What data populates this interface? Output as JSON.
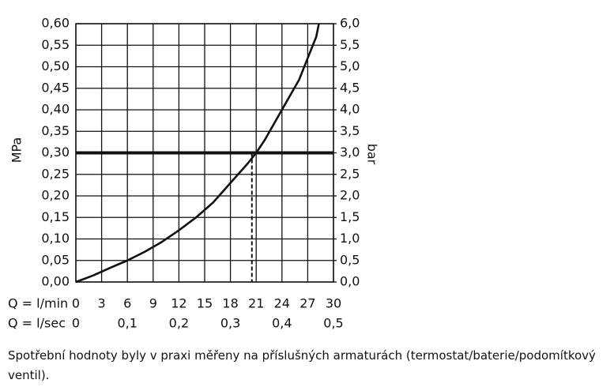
{
  "chart_data": {
    "type": "line",
    "y_label": "MPa",
    "y2_label": "bar",
    "x_label": "Q = l/min",
    "x2_label": "Q = l/sec",
    "caption": "Spotřební hodnoty byly v praxi měřeny na příslušných armaturách (termostat/baterie/podomítkový ventil).",
    "x": [
      0,
      2,
      4,
      6,
      8,
      10,
      12,
      14,
      16,
      18,
      20,
      21,
      22,
      24,
      26,
      28,
      28.3
    ],
    "series": [
      {
        "color": "#111111",
        "values": [
          0,
          0.015,
          0.033,
          0.05,
          0.07,
          0.093,
          0.12,
          0.15,
          0.185,
          0.23,
          0.275,
          0.3,
          0.33,
          0.4,
          0.47,
          0.57,
          0.6
        ]
      }
    ],
    "reference_y": 0.3,
    "reference_x": 20.5,
    "xlim": [
      0,
      30
    ],
    "xticks": [
      0,
      3,
      6,
      9,
      12,
      15,
      18,
      21,
      24,
      27,
      30
    ],
    "x2lim": [
      0,
      0.5
    ],
    "x2ticks": [
      0,
      {
        "value": 0.1,
        "label": "0,1"
      },
      {
        "value": 0.2,
        "label": "0,2"
      },
      {
        "value": 0.3,
        "label": "0,3"
      },
      {
        "value": 0.4,
        "label": "0,4"
      },
      {
        "value": 0.5,
        "label": "0,5"
      }
    ],
    "ylim": [
      0,
      0.6
    ],
    "yticks": [
      {
        "value": 0,
        "label": "0,00"
      },
      {
        "value": 0.05,
        "label": "0,05"
      },
      {
        "value": 0.1,
        "label": "0,10"
      },
      {
        "value": 0.15,
        "label": "0,15"
      },
      {
        "value": 0.2,
        "label": "0,20"
      },
      {
        "value": 0.25,
        "label": "0,25"
      },
      {
        "value": 0.3,
        "label": "0,30"
      },
      {
        "value": 0.35,
        "label": "0,35"
      },
      {
        "value": 0.4,
        "label": "0,40"
      },
      {
        "value": 0.45,
        "label": "0,45"
      },
      {
        "value": 0.5,
        "label": "0,50"
      },
      {
        "value": 0.55,
        "label": "0,55"
      },
      {
        "value": 0.6,
        "label": "0,60"
      }
    ],
    "y2lim": [
      0,
      6
    ],
    "y2ticks": [
      {
        "value": 0,
        "label": "0,0"
      },
      {
        "value": 0.5,
        "label": "0,5"
      },
      {
        "value": 1,
        "label": "1,0"
      },
      {
        "value": 1.5,
        "label": "1,5"
      },
      {
        "value": 2,
        "label": "2,0"
      },
      {
        "value": 2.5,
        "label": "2,5"
      },
      {
        "value": 3,
        "label": "3,0"
      },
      {
        "value": 3.5,
        "label": "3,5"
      },
      {
        "value": 4,
        "label": "4,0"
      },
      {
        "value": 4.5,
        "label": "4,5"
      },
      {
        "value": 5,
        "label": "5,0"
      },
      {
        "value": 5.5,
        "label": "5,5"
      },
      {
        "value": 6,
        "label": "6,0"
      }
    ],
    "grid": true
  }
}
